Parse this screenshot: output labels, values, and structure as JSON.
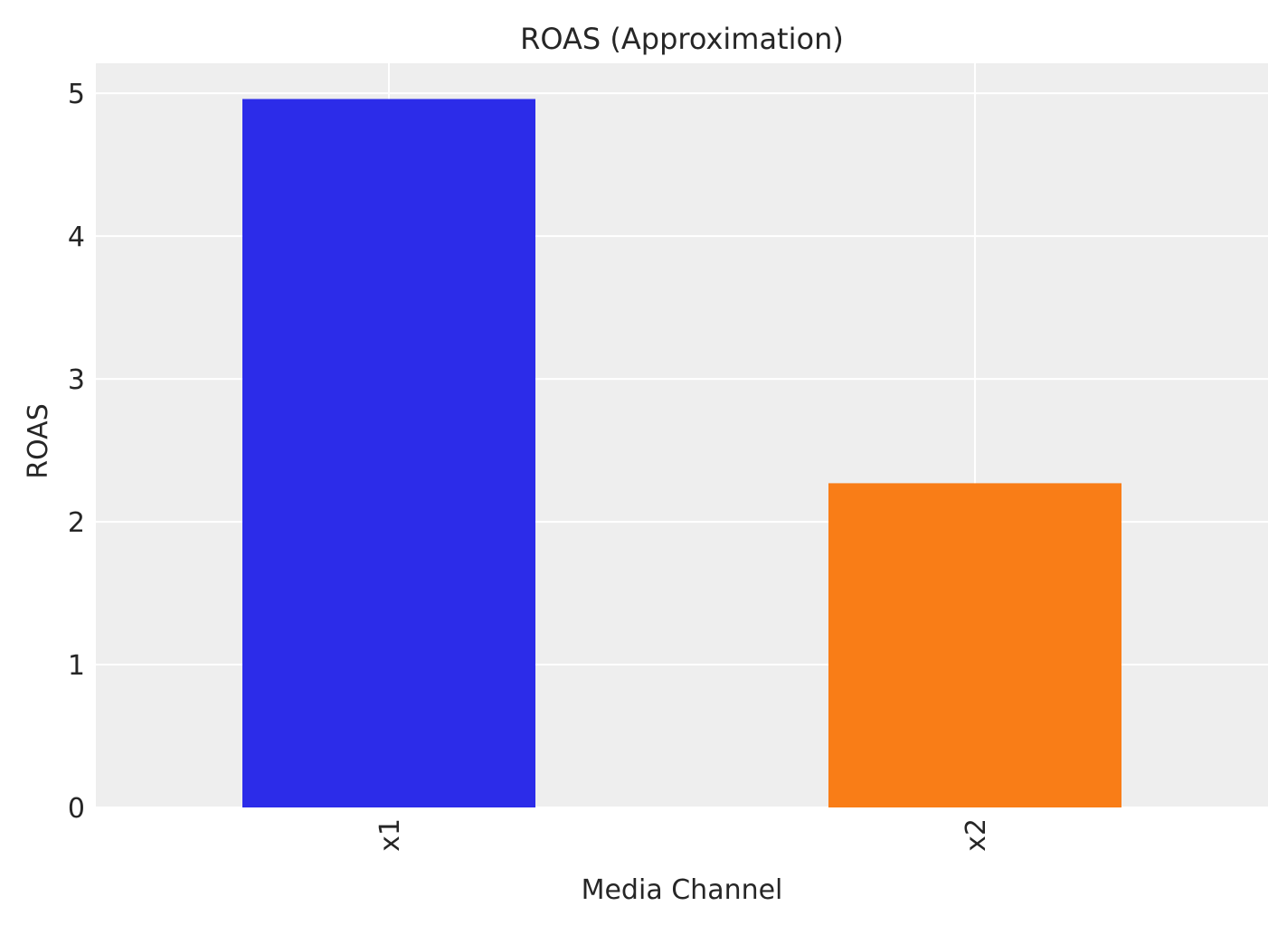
{
  "chart_data": {
    "type": "bar",
    "title": "ROAS (Approximation)",
    "xlabel": "Media Channel",
    "ylabel": "ROAS",
    "categories": [
      "x1",
      "x2"
    ],
    "values": [
      4.96,
      2.27
    ],
    "colors": [
      "#2c2ce9",
      "#f97d17"
    ],
    "ylim": [
      0,
      5.21
    ],
    "yticks": [
      0,
      1,
      2,
      3,
      4,
      5
    ],
    "grid": true,
    "background": "#eeeeee",
    "xtick_rotation": 90
  }
}
